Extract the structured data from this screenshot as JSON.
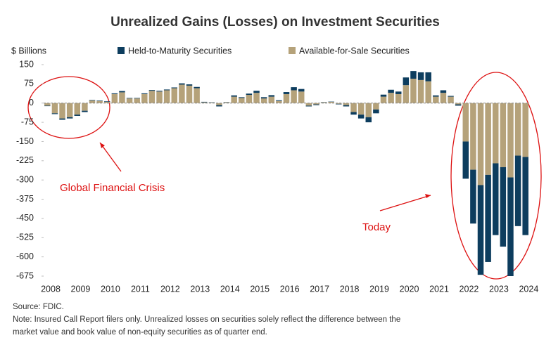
{
  "chart_data": {
    "type": "bar",
    "stacked": true,
    "title": "Unrealized Gains (Losses) on Investment Securities",
    "y_label": "$ Billions",
    "categories": [
      "2008",
      null,
      null,
      null,
      "2009",
      null,
      null,
      null,
      "2010",
      null,
      null,
      null,
      "2011",
      null,
      null,
      null,
      "2012",
      null,
      null,
      null,
      "2013",
      null,
      null,
      null,
      "2014",
      null,
      null,
      null,
      "2015",
      null,
      null,
      null,
      "2016",
      null,
      null,
      null,
      "2017",
      null,
      null,
      null,
      "2018",
      null,
      null,
      null,
      "2019",
      null,
      null,
      null,
      "2020",
      null,
      null,
      null,
      "2021",
      null,
      null,
      null,
      "2022",
      null,
      null,
      null,
      "2023",
      null,
      null,
      null,
      "2024"
    ],
    "series": [
      {
        "name": "Held-to-Maturity Securities",
        "color": "#0d3d5e",
        "values": [
          -2,
          -3,
          -5,
          -5,
          -5,
          -5,
          2,
          2,
          2,
          3,
          5,
          2,
          2,
          3,
          3,
          3,
          3,
          3,
          5,
          5,
          5,
          2,
          1,
          -5,
          1,
          5,
          3,
          5,
          8,
          5,
          6,
          3,
          8,
          12,
          10,
          -3,
          -3,
          1,
          1,
          -2,
          -5,
          -10,
          -15,
          -20,
          -15,
          8,
          12,
          10,
          30,
          30,
          30,
          35,
          5,
          10,
          3,
          -5,
          -145,
          -210,
          -350,
          -340,
          -280,
          -310,
          -385,
          -275,
          -305
        ]
      },
      {
        "name": "Available-for-Sale Securities",
        "color": "#b5a27a",
        "values": [
          -10,
          -40,
          -60,
          -55,
          -45,
          -30,
          10,
          8,
          5,
          35,
          42,
          18,
          18,
          35,
          48,
          45,
          50,
          58,
          72,
          68,
          58,
          3,
          2,
          -8,
          3,
          25,
          20,
          32,
          40,
          18,
          25,
          8,
          35,
          50,
          45,
          -10,
          -5,
          3,
          5,
          -3,
          -8,
          -35,
          -45,
          -55,
          -25,
          25,
          40,
          35,
          70,
          95,
          90,
          85,
          25,
          40,
          25,
          -5,
          -150,
          -260,
          -320,
          -280,
          -235,
          -250,
          -290,
          -205,
          -210
        ]
      }
    ],
    "ylim": [
      -675,
      150
    ],
    "yticks": [
      150,
      75,
      0,
      -75,
      -150,
      -225,
      -300,
      -375,
      -450,
      -525,
      -600,
      -675
    ],
    "annotations": [
      "Global Financial Crisis",
      "Today"
    ],
    "source": "Source: FDIC.",
    "notes": [
      "Note: Insured Call Report filers only. Unrealized losses on securities solely reflect the difference between the",
      "market value and book value of non-equity securities as of quarter end."
    ]
  }
}
